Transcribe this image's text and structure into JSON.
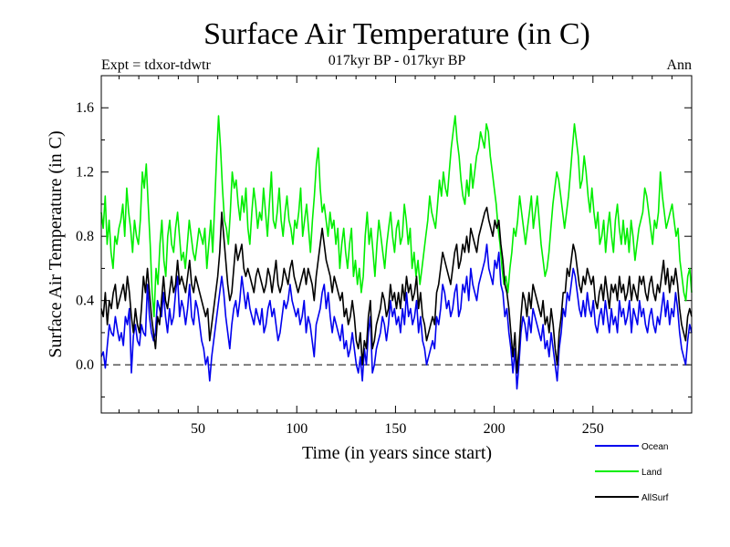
{
  "header": {
    "title": "Surface Air Temperature (in C)",
    "subtitle": "017kyr BP - 017kyr BP",
    "left_label": "Expt = tdxor-tdwtr",
    "right_label": "Ann"
  },
  "chart_data": {
    "type": "line",
    "xlabel": "Time (in years since start)",
    "ylabel": "Surface Air Temperature (in C)",
    "xlim": [
      1,
      300
    ],
    "ylim": [
      -0.3,
      1.8
    ],
    "x_ticks": [
      50,
      100,
      150,
      200,
      250
    ],
    "y_ticks": [
      {
        "value": 1.6,
        "label": "1.6"
      },
      {
        "value": 1.2,
        "label": "1.2"
      },
      {
        "value": 0.8,
        "label": "0.8"
      },
      {
        "value": 0.4,
        "label": "0.4"
      },
      {
        "value": 0.0,
        "label": "0.0"
      }
    ],
    "zero_line": {
      "value": 0.0,
      "style": "dashed"
    },
    "grid": false,
    "legend_position": "bottom-right",
    "series": [
      {
        "name": "Ocean",
        "color": "#0000ee",
        "values": [
          0.05,
          0.08,
          -0.02,
          0.12,
          0.25,
          0.2,
          0.18,
          0.3,
          0.22,
          0.15,
          0.2,
          0.12,
          0.3,
          0.25,
          0.35,
          -0.05,
          0.18,
          0.25,
          0.15,
          0.12,
          0.25,
          0.2,
          0.18,
          0.5,
          0.3,
          0.2,
          0.15,
          0.2,
          0.4,
          0.35,
          0.3,
          0.45,
          0.3,
          0.2,
          0.35,
          0.25,
          0.3,
          0.45,
          0.55,
          0.3,
          0.4,
          0.35,
          0.25,
          0.35,
          0.5,
          0.3,
          0.25,
          0.4,
          0.35,
          0.25,
          0.15,
          0.1,
          0.0,
          0.05,
          -0.1,
          0.05,
          0.15,
          0.25,
          0.35,
          0.45,
          0.55,
          0.45,
          0.3,
          0.2,
          0.1,
          0.25,
          0.35,
          0.4,
          0.3,
          0.4,
          0.55,
          0.45,
          0.35,
          0.45,
          0.35,
          0.3,
          0.25,
          0.35,
          0.3,
          0.25,
          0.35,
          0.2,
          0.25,
          0.35,
          0.4,
          0.3,
          0.35,
          0.25,
          0.15,
          0.2,
          0.3,
          0.4,
          0.35,
          0.4,
          0.5,
          0.4,
          0.35,
          0.3,
          0.35,
          0.25,
          0.3,
          0.4,
          0.2,
          0.3,
          0.25,
          0.15,
          0.05,
          0.25,
          0.3,
          0.35,
          0.45,
          0.5,
          0.35,
          0.45,
          0.3,
          0.2,
          0.3,
          0.25,
          0.2,
          0.15,
          0.25,
          0.1,
          0.15,
          0.05,
          0.1,
          0.2,
          0.1,
          0.0,
          -0.05,
          0.05,
          -0.1,
          0.1,
          0.0,
          0.2,
          0.3,
          -0.05,
          0.0,
          0.1,
          0.15,
          0.2,
          0.3,
          0.25,
          0.15,
          0.25,
          0.4,
          0.3,
          0.35,
          0.25,
          0.3,
          0.2,
          0.35,
          0.25,
          0.45,
          0.3,
          0.35,
          0.25,
          0.3,
          0.4,
          0.2,
          0.3,
          0.15,
          0.1,
          0.0,
          0.05,
          0.1,
          0.15,
          0.1,
          0.3,
          0.25,
          0.35,
          0.5,
          0.45,
          0.35,
          0.4,
          0.3,
          0.35,
          0.45,
          0.5,
          0.3,
          0.35,
          0.5,
          0.45,
          0.55,
          0.4,
          0.6,
          0.5,
          0.45,
          0.4,
          0.5,
          0.55,
          0.6,
          0.65,
          0.75,
          0.6,
          0.55,
          0.5,
          0.65,
          0.6,
          0.7,
          0.5,
          0.45,
          0.3,
          0.35,
          0.2,
          0.1,
          -0.05,
          0.1,
          -0.15,
          0.0,
          0.2,
          0.3,
          0.25,
          0.15,
          0.3,
          0.2,
          0.35,
          0.3,
          0.25,
          0.2,
          0.15,
          0.25,
          0.1,
          0.15,
          0.05,
          0.2,
          0.1,
          0.0,
          -0.1,
          0.1,
          0.2,
          0.35,
          0.3,
          0.45,
          0.4,
          0.5,
          0.6,
          0.55,
          0.45,
          0.35,
          0.3,
          0.4,
          0.3,
          0.45,
          0.35,
          0.3,
          0.4,
          0.25,
          0.2,
          0.3,
          0.35,
          0.25,
          0.4,
          0.3,
          0.2,
          0.35,
          0.25,
          0.3,
          0.2,
          0.4,
          0.3,
          0.35,
          0.25,
          0.3,
          0.4,
          0.2,
          0.35,
          0.3,
          0.25,
          0.4,
          0.3,
          0.35,
          0.25,
          0.2,
          0.3,
          0.35,
          0.25,
          0.2,
          0.3,
          0.25,
          0.35,
          0.45,
          0.3,
          0.4,
          0.25,
          0.35,
          0.3,
          0.45,
          0.35,
          0.2,
          0.1,
          0.05,
          0.0,
          0.15,
          0.25,
          0.2
        ]
      },
      {
        "name": "Land",
        "color": "#00ee00",
        "values": [
          0.95,
          0.85,
          1.05,
          0.75,
          0.9,
          0.7,
          0.6,
          0.8,
          0.75,
          0.85,
          0.9,
          1.0,
          0.8,
          1.1,
          0.95,
          0.85,
          0.7,
          0.9,
          0.8,
          0.75,
          0.9,
          1.2,
          1.1,
          1.25,
          1.0,
          0.75,
          0.45,
          0.3,
          0.6,
          0.5,
          0.75,
          0.9,
          0.65,
          0.55,
          0.8,
          0.9,
          0.75,
          0.7,
          0.85,
          0.95,
          0.8,
          0.65,
          0.7,
          0.6,
          0.75,
          0.9,
          0.8,
          0.7,
          0.65,
          0.75,
          0.85,
          0.8,
          0.75,
          0.85,
          0.6,
          0.75,
          0.9,
          0.7,
          1.0,
          1.3,
          1.55,
          1.35,
          1.1,
          0.9,
          0.85,
          0.75,
          0.95,
          1.2,
          1.1,
          1.15,
          1.0,
          0.9,
          1.05,
          0.95,
          1.1,
          0.85,
          0.75,
          0.95,
          1.1,
          1.0,
          0.85,
          0.95,
          0.9,
          1.1,
          0.95,
          0.8,
          1.0,
          1.2,
          0.9,
          0.85,
          0.95,
          1.1,
          0.9,
          0.8,
          0.95,
          1.05,
          0.9,
          0.85,
          0.75,
          0.9,
          0.85,
          0.95,
          1.1,
          0.8,
          0.9,
          1.0,
          0.85,
          0.7,
          0.9,
          1.05,
          1.25,
          1.35,
          1.1,
          0.95,
          1.0,
          0.9,
          0.8,
          0.95,
          0.85,
          0.9,
          0.75,
          0.85,
          0.6,
          0.75,
          0.85,
          0.7,
          0.6,
          0.75,
          0.85,
          0.55,
          0.65,
          0.5,
          0.6,
          0.45,
          0.55,
          0.8,
          0.95,
          0.75,
          0.85,
          0.7,
          0.55,
          0.75,
          0.9,
          0.8,
          0.7,
          0.6,
          0.75,
          0.85,
          0.95,
          0.8,
          0.7,
          0.85,
          0.9,
          0.75,
          0.8,
          1.0,
          0.9,
          0.75,
          0.85,
          0.6,
          0.7,
          0.55,
          0.65,
          0.5,
          0.6,
          0.7,
          0.8,
          0.9,
          1.05,
          0.95,
          0.9,
          0.85,
          1.0,
          1.15,
          1.05,
          1.2,
          1.1,
          1.05,
          1.2,
          1.35,
          1.45,
          1.55,
          1.4,
          1.3,
          1.15,
          1.05,
          1.0,
          1.15,
          1.05,
          1.25,
          1.1,
          1.2,
          1.3,
          1.35,
          1.45,
          1.4,
          1.35,
          1.5,
          1.45,
          1.3,
          1.2,
          1.1,
          1.0,
          0.85,
          0.75,
          0.6,
          0.5,
          0.55,
          0.45,
          0.6,
          0.7,
          0.85,
          0.8,
          0.9,
          1.05,
          0.95,
          0.85,
          0.75,
          0.85,
          0.95,
          1.05,
          0.85,
          0.95,
          1.05,
          0.9,
          0.75,
          0.65,
          0.55,
          0.6,
          0.7,
          0.85,
          1.0,
          1.1,
          1.2,
          1.15,
          1.05,
          0.95,
          0.85,
          0.95,
          1.05,
          1.2,
          1.35,
          1.5,
          1.4,
          1.3,
          1.1,
          1.15,
          1.3,
          1.2,
          1.05,
          0.95,
          1.1,
          0.95,
          0.85,
          0.95,
          0.75,
          0.8,
          0.9,
          0.7,
          0.85,
          0.95,
          0.8,
          0.7,
          0.9,
          1.0,
          0.85,
          0.75,
          0.9,
          0.75,
          0.85,
          0.7,
          0.9,
          0.8,
          0.65,
          0.75,
          0.85,
          0.9,
          0.95,
          1.1,
          1.05,
          0.95,
          0.85,
          0.75,
          0.9,
          0.85,
          0.95,
          1.2,
          1.05,
          0.95,
          0.85,
          0.9,
          0.95,
          1.0,
          0.9,
          0.8,
          0.85,
          0.65,
          0.55,
          0.45,
          0.4,
          0.55,
          0.6,
          0.45
        ]
      },
      {
        "name": "AllSurf",
        "color": "#000000",
        "values": [
          0.35,
          0.3,
          0.45,
          0.25,
          0.4,
          0.35,
          0.45,
          0.5,
          0.35,
          0.4,
          0.45,
          0.5,
          0.4,
          0.55,
          0.45,
          0.3,
          0.2,
          0.35,
          0.25,
          0.2,
          0.35,
          0.55,
          0.45,
          0.6,
          0.45,
          0.3,
          0.2,
          0.1,
          0.3,
          0.25,
          0.4,
          0.55,
          0.4,
          0.35,
          0.45,
          0.55,
          0.45,
          0.5,
          0.65,
          0.5,
          0.55,
          0.5,
          0.45,
          0.55,
          0.65,
          0.5,
          0.45,
          0.55,
          0.5,
          0.45,
          0.4,
          0.35,
          0.3,
          0.35,
          0.15,
          0.25,
          0.35,
          0.45,
          0.55,
          0.7,
          0.95,
          0.8,
          0.65,
          0.5,
          0.4,
          0.45,
          0.6,
          0.75,
          0.65,
          0.7,
          0.75,
          0.6,
          0.55,
          0.6,
          0.55,
          0.5,
          0.45,
          0.55,
          0.6,
          0.55,
          0.5,
          0.45,
          0.5,
          0.6,
          0.55,
          0.45,
          0.55,
          0.65,
          0.5,
          0.45,
          0.5,
          0.6,
          0.55,
          0.5,
          0.6,
          0.65,
          0.55,
          0.5,
          0.45,
          0.5,
          0.55,
          0.6,
          0.5,
          0.6,
          0.55,
          0.5,
          0.4,
          0.55,
          0.65,
          0.75,
          0.85,
          0.75,
          0.65,
          0.6,
          0.55,
          0.45,
          0.55,
          0.5,
          0.45,
          0.4,
          0.45,
          0.3,
          0.35,
          0.25,
          0.3,
          0.4,
          0.3,
          0.15,
          0.1,
          0.2,
          0.0,
          0.15,
          0.1,
          0.3,
          0.4,
          0.1,
          0.15,
          0.25,
          0.3,
          0.35,
          0.45,
          0.4,
          0.3,
          0.35,
          0.5,
          0.4,
          0.45,
          0.35,
          0.45,
          0.35,
          0.5,
          0.4,
          0.55,
          0.45,
          0.5,
          0.4,
          0.45,
          0.55,
          0.35,
          0.45,
          0.3,
          0.25,
          0.15,
          0.2,
          0.25,
          0.3,
          0.25,
          0.45,
          0.5,
          0.6,
          0.7,
          0.65,
          0.6,
          0.55,
          0.5,
          0.6,
          0.7,
          0.75,
          0.6,
          0.65,
          0.75,
          0.7,
          0.8,
          0.7,
          0.85,
          0.8,
          0.75,
          0.7,
          0.8,
          0.85,
          0.9,
          0.95,
          0.98,
          0.9,
          0.85,
          0.8,
          0.9,
          0.85,
          0.9,
          0.75,
          0.65,
          0.5,
          0.45,
          0.35,
          0.2,
          0.05,
          0.2,
          -0.05,
          0.1,
          0.3,
          0.45,
          0.4,
          0.3,
          0.45,
          0.35,
          0.5,
          0.45,
          0.4,
          0.35,
          0.3,
          0.4,
          0.25,
          0.3,
          0.2,
          0.35,
          0.25,
          0.1,
          0.0,
          0.2,
          0.3,
          0.45,
          0.45,
          0.6,
          0.55,
          0.65,
          0.75,
          0.7,
          0.6,
          0.5,
          0.45,
          0.55,
          0.5,
          0.6,
          0.55,
          0.5,
          0.55,
          0.4,
          0.35,
          0.45,
          0.5,
          0.4,
          0.55,
          0.45,
          0.35,
          0.5,
          0.45,
          0.5,
          0.4,
          0.55,
          0.45,
          0.5,
          0.4,
          0.45,
          0.55,
          0.4,
          0.5,
          0.45,
          0.4,
          0.55,
          0.5,
          0.55,
          0.45,
          0.4,
          0.5,
          0.55,
          0.45,
          0.4,
          0.5,
          0.45,
          0.55,
          0.65,
          0.5,
          0.6,
          0.45,
          0.55,
          0.5,
          0.6,
          0.5,
          0.35,
          0.25,
          0.2,
          0.15,
          0.3,
          0.35,
          0.3
        ]
      }
    ]
  }
}
